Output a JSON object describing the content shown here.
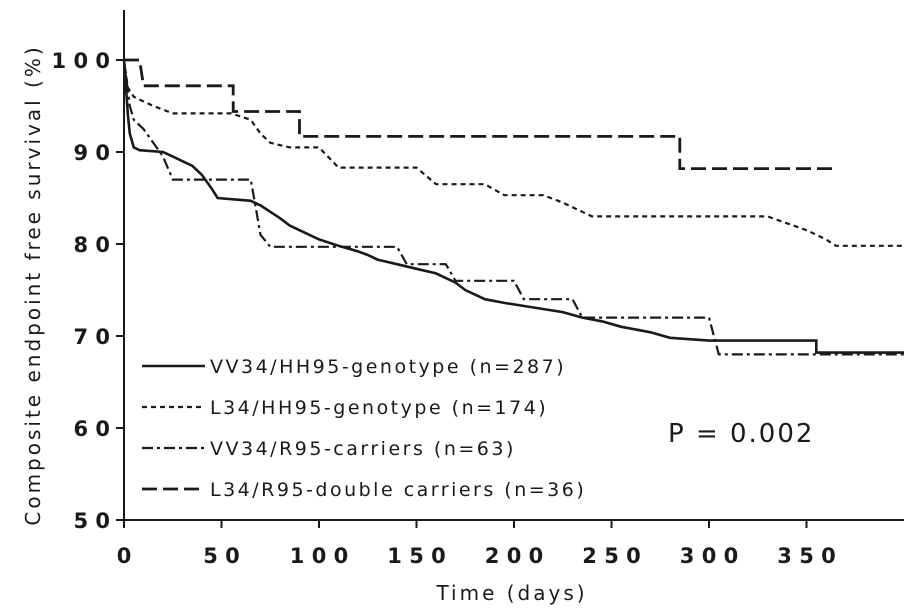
{
  "chart_data": {
    "type": "line",
    "subtype": "kaplan-meier",
    "title": "",
    "xlabel": "Time (days)",
    "ylabel": "Composite endpoint free survival (%)",
    "xlim": [
      0,
      400
    ],
    "ylim": [
      50,
      100
    ],
    "x_ticks": [
      0,
      50,
      100,
      150,
      200,
      250,
      300,
      350
    ],
    "y_ticks": [
      50,
      60,
      70,
      80,
      90,
      100
    ],
    "grid": false,
    "legend_position": "bottom-left",
    "annotation": "P = 0.002",
    "series": [
      {
        "name": "VV34/HH95-genotype (n=287)",
        "style": "solid",
        "points": [
          [
            0,
            100
          ],
          [
            1,
            97
          ],
          [
            2,
            94
          ],
          [
            3,
            92
          ],
          [
            5,
            90.5
          ],
          [
            8,
            90.2
          ],
          [
            20,
            90
          ],
          [
            25,
            89.5
          ],
          [
            30,
            89
          ],
          [
            35,
            88.5
          ],
          [
            40,
            87.5
          ],
          [
            45,
            86
          ],
          [
            48,
            85
          ],
          [
            65,
            84.7
          ],
          [
            70,
            84.2
          ],
          [
            75,
            83.5
          ],
          [
            80,
            82.8
          ],
          [
            85,
            82
          ],
          [
            90,
            81.5
          ],
          [
            95,
            81
          ],
          [
            100,
            80.5
          ],
          [
            110,
            79.8
          ],
          [
            120,
            79.2
          ],
          [
            125,
            78.8
          ],
          [
            130,
            78.3
          ],
          [
            140,
            77.8
          ],
          [
            150,
            77.3
          ],
          [
            160,
            76.8
          ],
          [
            170,
            75.8
          ],
          [
            175,
            75
          ],
          [
            180,
            74.5
          ],
          [
            185,
            74
          ],
          [
            195,
            73.6
          ],
          [
            210,
            73.1
          ],
          [
            225,
            72.6
          ],
          [
            235,
            72
          ],
          [
            245,
            71.6
          ],
          [
            255,
            71
          ],
          [
            270,
            70.4
          ],
          [
            280,
            69.8
          ],
          [
            300,
            69.5
          ],
          [
            355,
            69.5
          ],
          [
            355,
            68.2
          ],
          [
            400,
            68.2
          ]
        ]
      },
      {
        "name": "L34/HH95-genotype (n=174)",
        "style": "short-dash",
        "points": [
          [
            0,
            100
          ],
          [
            2,
            97
          ],
          [
            5,
            96
          ],
          [
            15,
            95
          ],
          [
            25,
            94.2
          ],
          [
            55,
            94.2
          ],
          [
            65,
            93.5
          ],
          [
            70,
            92
          ],
          [
            75,
            91
          ],
          [
            85,
            90.5
          ],
          [
            100,
            90.5
          ],
          [
            110,
            88.3
          ],
          [
            150,
            88.3
          ],
          [
            160,
            86.5
          ],
          [
            185,
            86.5
          ],
          [
            195,
            85.3
          ],
          [
            215,
            85.3
          ],
          [
            225,
            84.5
          ],
          [
            240,
            83
          ],
          [
            330,
            83
          ],
          [
            350,
            81.5
          ],
          [
            360,
            80.5
          ],
          [
            365,
            79.8
          ],
          [
            400,
            79.8
          ]
        ]
      },
      {
        "name": "VV34/R95-carriers (n=63)",
        "style": "dash-dot",
        "points": [
          [
            0,
            100
          ],
          [
            3,
            95
          ],
          [
            5,
            93.5
          ],
          [
            10,
            92.5
          ],
          [
            15,
            91
          ],
          [
            20,
            89.5
          ],
          [
            25,
            87
          ],
          [
            50,
            87
          ],
          [
            65,
            87
          ],
          [
            70,
            81
          ],
          [
            75,
            79.7
          ],
          [
            140,
            79.7
          ],
          [
            145,
            77.8
          ],
          [
            165,
            77.8
          ],
          [
            170,
            76
          ],
          [
            200,
            76
          ],
          [
            205,
            74
          ],
          [
            230,
            74
          ],
          [
            235,
            72
          ],
          [
            300,
            72
          ],
          [
            305,
            68
          ],
          [
            400,
            68
          ]
        ]
      },
      {
        "name": "L34/R95-double carriers (n=36)",
        "style": "long-dash",
        "points": [
          [
            0,
            100
          ],
          [
            8,
            100
          ],
          [
            10,
            97.2
          ],
          [
            56,
            97.2
          ],
          [
            56,
            94.4
          ],
          [
            90,
            94.4
          ],
          [
            90,
            91.7
          ],
          [
            285,
            91.7
          ],
          [
            285,
            88.2
          ],
          [
            365,
            88.2
          ]
        ]
      }
    ]
  }
}
